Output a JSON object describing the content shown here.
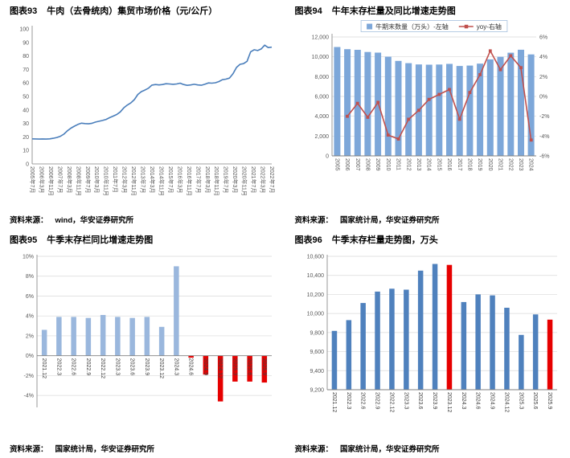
{
  "report": {
    "panels": [
      {
        "figure_label": "图表93",
        "figure_title": "牛肉（去骨统肉）集贸市场价格（元/公斤）",
        "source_prefix": "资料来源：",
        "source_text": "wind，华安证券研究所"
      },
      {
        "figure_label": "图表94",
        "figure_title": "牛年末存栏量及同比增速走势图",
        "source_prefix": "资料来源：",
        "source_text": "国家统计局，华安证券研究所"
      },
      {
        "figure_label": "图表95",
        "figure_title": "牛季末存栏同比增速走势图",
        "source_prefix": "资料来源：",
        "source_text": "国家统计局，华安证券研究所"
      },
      {
        "figure_label": "图表96",
        "figure_title": "牛季末存栏量走势图，万头",
        "source_prefix": "资料来源：",
        "source_text": "国家统计局，华安证券研究所"
      }
    ]
  },
  "chart_data": [
    {
      "type": "line",
      "title": "牛肉（去骨统肉）集贸市场价格（元/公斤）",
      "xlabel": "",
      "ylabel": "",
      "ylim": [
        0,
        100
      ],
      "ytick_step": 10,
      "grid": false,
      "legend_position": "none",
      "line_color": "#4a7ebb",
      "x_tick_labels": [
        "2005年7月",
        "2006年3月",
        "2006年11月",
        "2007年7月",
        "2008年3月",
        "2008年11月",
        "2009年7月",
        "2010年3月",
        "2010年11月",
        "2011年7月",
        "2012年3月",
        "2012年11月",
        "2013年7月",
        "2014年3月",
        "2014年11月",
        "2015年7月",
        "2016年3月",
        "2016年11月",
        "2017年7月",
        "2018年3月",
        "2018年11月",
        "2019年7月",
        "2020年3月",
        "2020年11月",
        "2021年7月",
        "2022年3月",
        "2022年7月"
      ],
      "values": [
        18.6,
        18.5,
        18.4,
        18.5,
        18.4,
        18.6,
        19.0,
        19.6,
        20.5,
        22.0,
        24.5,
        26.5,
        28.0,
        29.3,
        30.2,
        29.9,
        29.7,
        30.1,
        31.0,
        31.6,
        32.2,
        33.0,
        34.3,
        35.4,
        36.6,
        38.5,
        41.5,
        43.6,
        45.2,
        47.6,
        51.5,
        53.6,
        54.7,
        56.1,
        58.4,
        58.8,
        58.5,
        58.8,
        59.4,
        59.2,
        59.0,
        59.2,
        59.8,
        58.8,
        58.2,
        58.5,
        59.0,
        58.5,
        58.3,
        59.0,
        60.0,
        59.8,
        60.1,
        61.0,
        62.4,
        62.8,
        63.6,
        66.8,
        71.5,
        73.8,
        74.3,
        76.0,
        83.0,
        84.6,
        84.0,
        85.2,
        88.0,
        86.2,
        86.5
      ]
    },
    {
      "type": "bar-line",
      "title": "牛年末存栏量及同比增速走势图",
      "xlabel": "",
      "ylabel": "",
      "grid": true,
      "legend_position": "top",
      "categories": [
        "2005",
        "2006",
        "2007",
        "2008",
        "2009",
        "2010",
        "2011",
        "2012",
        "2013",
        "2014",
        "2015",
        "2016",
        "2017",
        "2018",
        "2019",
        "2020",
        "2021",
        "2022",
        "2023",
        "2024"
      ],
      "series": [
        {
          "name": "牛期末数量（万头）-左轴",
          "kind": "bar",
          "axis": "left",
          "color": "#7da7d9",
          "values": [
            10990,
            10770,
            10700,
            10480,
            10420,
            10010,
            9580,
            9360,
            9230,
            9200,
            9220,
            9280,
            9070,
            9110,
            9310,
            9740,
            10000,
            10410,
            10710,
            10240
          ]
        },
        {
          "name": "yoy-右轴",
          "kind": "line",
          "axis": "right",
          "color": "#c0504d",
          "values": [
            null,
            -2.0,
            -0.7,
            -2.1,
            -0.6,
            -3.9,
            -4.3,
            -2.3,
            -1.4,
            -0.3,
            0.2,
            0.7,
            -2.3,
            0.4,
            2.2,
            4.6,
            2.7,
            4.1,
            2.9,
            -4.4
          ]
        }
      ],
      "left_axis": {
        "lim": [
          0,
          12000
        ],
        "step": 2000,
        "format": "thousands"
      },
      "right_axis": {
        "lim": [
          -6,
          6
        ],
        "step": 2,
        "format": "percent"
      }
    },
    {
      "type": "bar",
      "title": "牛季末存栏同比增速走势图",
      "xlabel": "",
      "ylabel": "",
      "grid": true,
      "legend_position": "none",
      "categories": [
        "2021.12",
        "2022.3",
        "2022.6",
        "2022.9",
        "2022.12",
        "2023.3",
        "2023.6",
        "2023.9",
        "2023.12",
        "2024.3",
        "2024.6",
        "2024.9",
        "2024.12",
        "2025.3",
        "2025.6",
        "2025.9"
      ],
      "values": [
        2.6,
        3.9,
        3.9,
        3.8,
        4.1,
        3.9,
        3.8,
        3.9,
        2.9,
        9.0,
        -0.2,
        -1.9,
        -4.6,
        -2.6,
        -2.6,
        -2.7
      ],
      "bar_colors": [
        "#9ab7dd",
        "#9ab7dd",
        "#9ab7dd",
        "#9ab7dd",
        "#9ab7dd",
        "#9ab7dd",
        "#9ab7dd",
        "#9ab7dd",
        "#9ab7dd",
        "#9ab7dd",
        "#e60000",
        "#e60000",
        "#e60000",
        "#e60000",
        "#e60000",
        "#e60000"
      ],
      "ylim": [
        -5.2,
        10
      ],
      "yticks": [
        -4,
        -2,
        0,
        2,
        4,
        6,
        8,
        10
      ],
      "format": "percent",
      "labels_at_zero": true
    },
    {
      "type": "bar",
      "title": "牛季末存栏量走势图，万头",
      "xlabel": "",
      "ylabel": "",
      "grid": true,
      "legend_position": "none",
      "categories": [
        "2021.12",
        "2022.3",
        "2022.6",
        "2022.9",
        "2022.12",
        "2023.3",
        "2023.6",
        "2023.9",
        "2023.12",
        "2024.3",
        "2024.6",
        "2024.9",
        "2024.12",
        "2025.3",
        "2025.6",
        "2025.9"
      ],
      "values": [
        9817,
        9930,
        10110,
        10230,
        10260,
        10250,
        10450,
        10520,
        10510,
        10120,
        10200,
        10190,
        10060,
        9775,
        9990,
        9935
      ],
      "bar_colors": [
        "#4f81bd",
        "#4f81bd",
        "#4f81bd",
        "#4f81bd",
        "#4f81bd",
        "#4f81bd",
        "#4f81bd",
        "#4f81bd",
        "#e60000",
        "#4f81bd",
        "#4f81bd",
        "#4f81bd",
        "#4f81bd",
        "#4f81bd",
        "#4f81bd",
        "#e60000"
      ],
      "ylim": [
        9200,
        10600
      ],
      "yticks": [
        9200,
        9400,
        9600,
        9800,
        10000,
        10200,
        10400,
        10600
      ],
      "format": "thousands",
      "labels_at_zero": false
    }
  ]
}
